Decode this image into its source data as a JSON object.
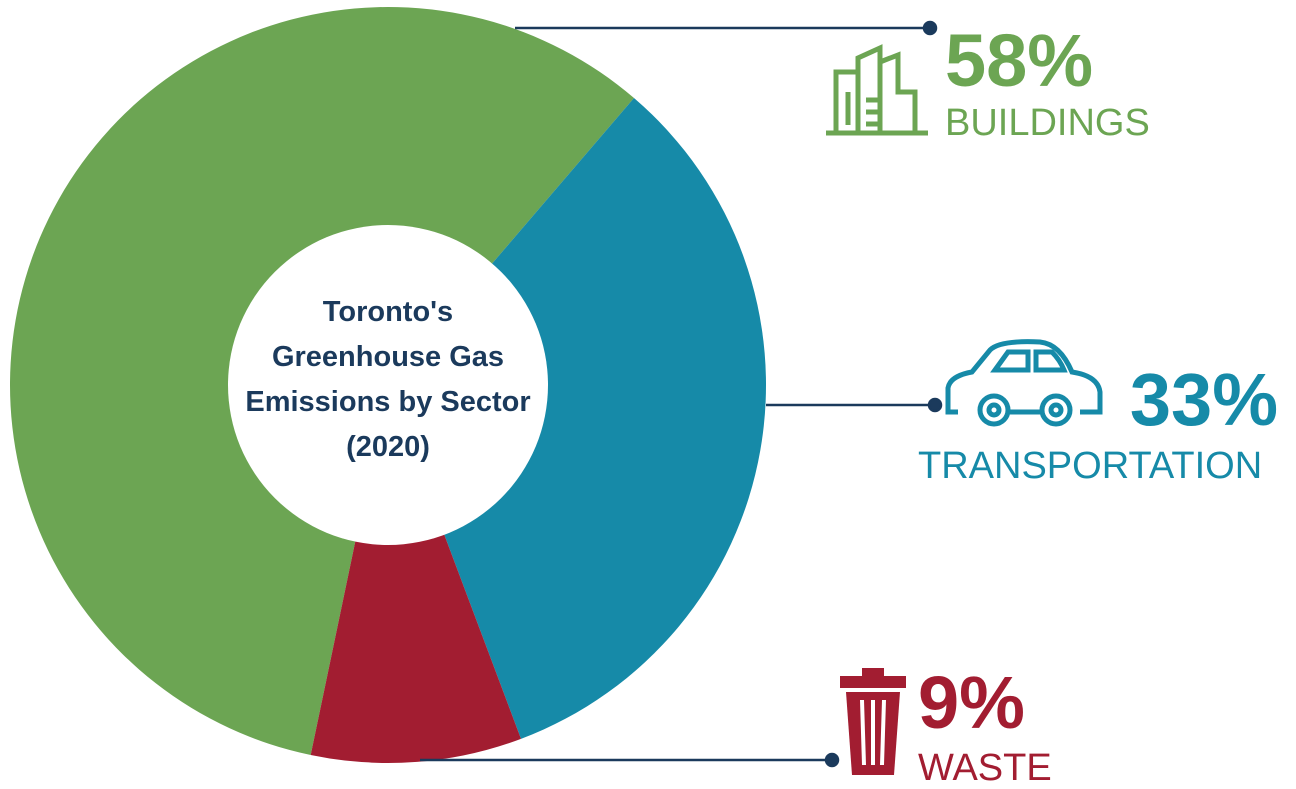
{
  "chart_data": {
    "type": "donut",
    "title": "Toronto's Greenhouse Gas Emissions by Sector (2020)",
    "categories": [
      "BUILDINGS",
      "TRANSPORTATION",
      "WASTE"
    ],
    "values": [
      58,
      33,
      9
    ],
    "value_labels": [
      "58%",
      "33%",
      "9%"
    ],
    "colors": [
      "#6ca553",
      "#168aa8",
      "#a21d31"
    ]
  }
}
